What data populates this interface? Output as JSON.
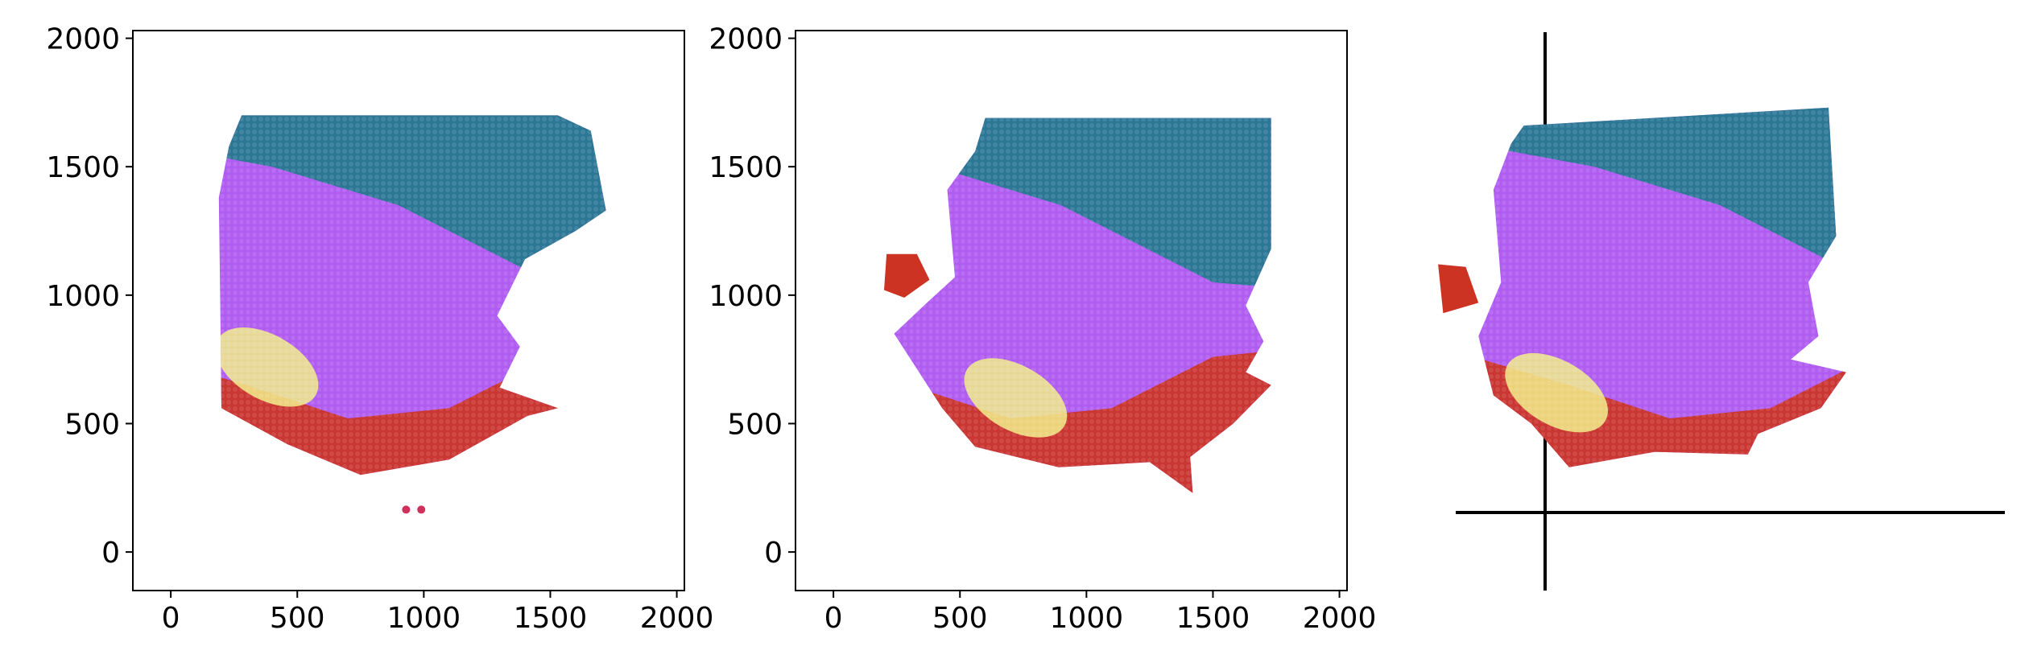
{
  "chart_data": [
    {
      "type": "scatter",
      "panel": "left",
      "xlim": [
        -150,
        2030
      ],
      "ylim": [
        -150,
        2030
      ],
      "x_ticks": [
        "0",
        "500",
        "1000",
        "1500",
        "2000"
      ],
      "y_ticks": [
        "0",
        "500",
        "1000",
        "1500",
        "2000"
      ],
      "grid": false,
      "description_colors": {
        "upper": "#1f7a8c",
        "middle": "#b05cf0",
        "lower": "#cc3322",
        "hotspot": "#f2ee88"
      },
      "tissue_outline": [
        [
          280,
          1700
        ],
        [
          1530,
          1700
        ],
        [
          1660,
          1640
        ],
        [
          1720,
          1330
        ],
        [
          1600,
          1250
        ],
        [
          1400,
          1140
        ],
        [
          1290,
          920
        ],
        [
          1380,
          800
        ],
        [
          1300,
          640
        ],
        [
          1530,
          560
        ],
        [
          1410,
          530
        ],
        [
          1100,
          360
        ],
        [
          750,
          300
        ],
        [
          460,
          420
        ],
        [
          200,
          560
        ],
        [
          195,
          1000
        ],
        [
          190,
          1380
        ],
        [
          230,
          1580
        ]
      ],
      "island": [
        [
          930,
          165
        ],
        [
          990,
          165
        ]
      ]
    },
    {
      "type": "scatter",
      "panel": "middle",
      "xlim": [
        -150,
        2030
      ],
      "ylim": [
        -150,
        2030
      ],
      "x_ticks": [
        "0",
        "500",
        "1000",
        "1500",
        "2000"
      ],
      "y_ticks": [
        "0",
        "500",
        "1000",
        "1500",
        "2000"
      ],
      "grid": false,
      "description_colors": {
        "upper": "#1f7a8c",
        "middle": "#b05cf0",
        "lower": "#cc3322",
        "hotspot": "#f2ee88"
      },
      "tissue_outline": [
        [
          600,
          1690
        ],
        [
          1730,
          1690
        ],
        [
          1730,
          1180
        ],
        [
          1630,
          960
        ],
        [
          1700,
          820
        ],
        [
          1630,
          700
        ],
        [
          1730,
          650
        ],
        [
          1580,
          500
        ],
        [
          1410,
          370
        ],
        [
          1420,
          230
        ],
        [
          1250,
          350
        ],
        [
          890,
          330
        ],
        [
          560,
          410
        ],
        [
          430,
          560
        ],
        [
          240,
          850
        ],
        [
          380,
          980
        ],
        [
          480,
          1070
        ],
        [
          450,
          1410
        ],
        [
          560,
          1560
        ]
      ],
      "island_outline": [
        [
          210,
          1160
        ],
        [
          330,
          1160
        ],
        [
          380,
          1060
        ],
        [
          280,
          990
        ],
        [
          200,
          1020
        ]
      ]
    },
    {
      "type": "scatter",
      "panel": "right",
      "axis_style": "crosshair",
      "xlim": [
        -150,
        2030
      ],
      "ylim": [
        -150,
        2030
      ],
      "grid": false,
      "description_colors": {
        "upper": "#1f7a8c",
        "middle": "#b05cf0",
        "lower": "#cc3322",
        "hotspot": "#f2ee88"
      },
      "tissue_outline": [
        [
          120,
          1660
        ],
        [
          1330,
          1730
        ],
        [
          1360,
          1230
        ],
        [
          1250,
          1050
        ],
        [
          1290,
          840
        ],
        [
          1180,
          750
        ],
        [
          1400,
          700
        ],
        [
          1300,
          560
        ],
        [
          1050,
          460
        ],
        [
          1010,
          380
        ],
        [
          640,
          390
        ],
        [
          300,
          330
        ],
        [
          150,
          500
        ],
        [
          0,
          610
        ],
        [
          -60,
          840
        ],
        [
          30,
          1050
        ],
        [
          0,
          1410
        ],
        [
          70,
          1590
        ]
      ],
      "island_outline": [
        [
          -220,
          1120
        ],
        [
          -110,
          1110
        ],
        [
          -60,
          970
        ],
        [
          -200,
          930
        ]
      ]
    }
  ]
}
